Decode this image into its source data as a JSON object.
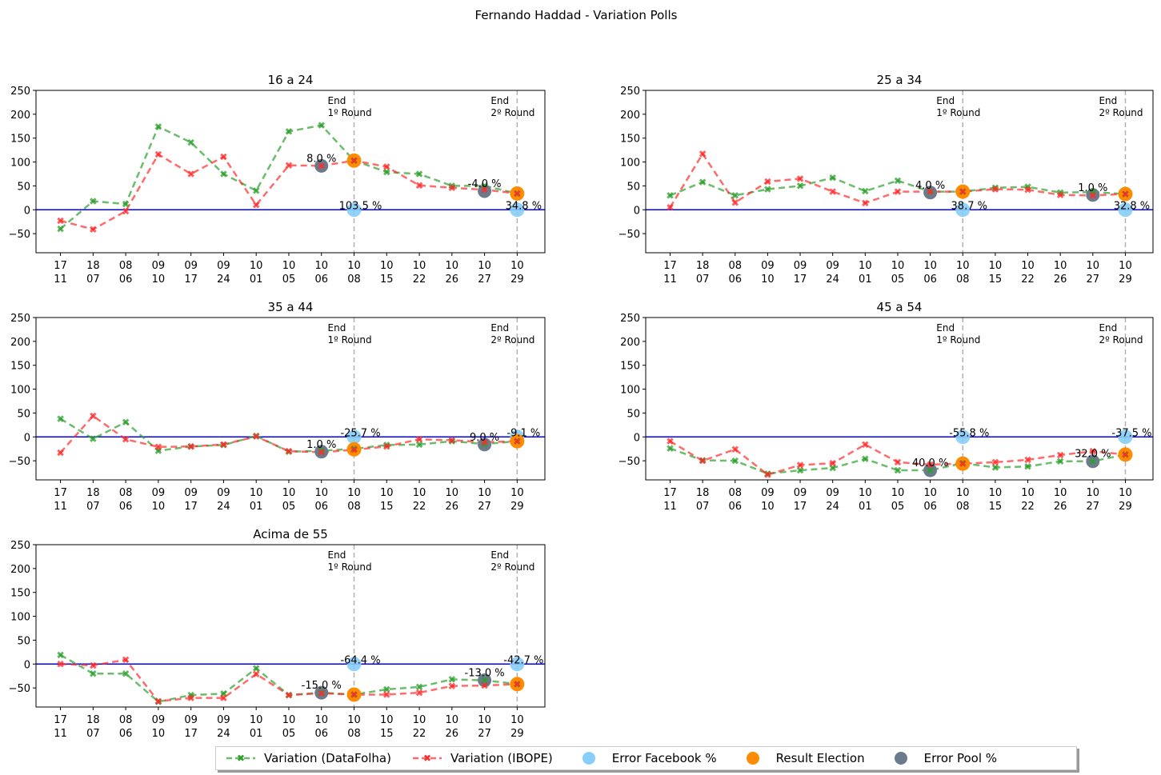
{
  "figure": {
    "suptitle": "Fernando Haddad - Variation Polls"
  },
  "colors": {
    "datafolha": "#2ca02c",
    "ibope": "#ff2b2b",
    "facebook": "#87cefa",
    "election": "#ff8c00",
    "pool": "#6b7b8c",
    "zero_line": "#0000ff",
    "vline": "#b0b0b0"
  },
  "legend": {
    "datafolha": "Variation (DataFolha)",
    "ibope": "Variation (IBOPE)",
    "facebook": "Error Facebook %",
    "election": "Result Election",
    "pool": "Error Pool %"
  },
  "markers": {
    "end1": "End\n1º Round",
    "end2": "End\n2º Round"
  },
  "chart_data": [
    {
      "type": "line",
      "title": "16 a 24",
      "categories": [
        "17\n11",
        "18\n07",
        "08\n06",
        "09\n10",
        "09\n17",
        "09\n24",
        "10\n01",
        "10\n05",
        "10\n06",
        "10\n08",
        "10\n15",
        "10\n22",
        "10\n26",
        "10\n27",
        "10\n29"
      ],
      "ylim": [
        -90,
        250
      ],
      "yticks": [
        -50,
        0,
        50,
        100,
        150,
        200,
        250
      ],
      "series": [
        {
          "name": "Variation (DataFolha)",
          "values": [
            -40,
            18,
            12,
            174,
            141,
            75,
            40,
            164,
            177,
            103,
            79,
            75,
            50,
            50,
            34
          ]
        },
        {
          "name": "Variation (IBOPE)",
          "values": [
            -23,
            -41,
            -3,
            116,
            75,
            111,
            10,
            93,
            92,
            103,
            90,
            51,
            46,
            42,
            34
          ]
        }
      ],
      "pool_points": [
        {
          "x": 8,
          "y": 92,
          "label": "8.0 %"
        },
        {
          "x": 13,
          "y": 39,
          "label": "-4.0 %"
        }
      ],
      "election_points": [
        {
          "x": 9,
          "y": 103
        },
        {
          "x": 14,
          "y": 34
        }
      ],
      "facebook_points": [
        {
          "x": 9,
          "y": 0,
          "label": "103.5 %"
        },
        {
          "x": 14,
          "y": 0,
          "label": "34.8 %"
        }
      ]
    },
    {
      "type": "line",
      "title": "25 a 34",
      "categories": [
        "17\n11",
        "18\n07",
        "08\n06",
        "09\n10",
        "09\n17",
        "09\n24",
        "10\n01",
        "10\n05",
        "10\n06",
        "10\n08",
        "10\n15",
        "10\n22",
        "10\n26",
        "10\n27",
        "10\n29"
      ],
      "ylim": [
        -90,
        250
      ],
      "yticks": [
        -50,
        0,
        50,
        100,
        150,
        200,
        250
      ],
      "series": [
        {
          "name": "Variation (DataFolha)",
          "values": [
            30,
            58,
            30,
            43,
            50,
            67,
            39,
            61,
            38,
            38,
            46,
            48,
            36,
            37,
            33
          ]
        },
        {
          "name": "Variation (IBOPE)",
          "values": [
            5,
            117,
            15,
            59,
            65,
            38,
            14,
            38,
            38,
            38,
            43,
            42,
            31,
            30,
            33
          ]
        }
      ],
      "pool_points": [
        {
          "x": 8,
          "y": 36,
          "label": "4.0 %"
        },
        {
          "x": 13,
          "y": 31,
          "label": "1.0 %"
        }
      ],
      "election_points": [
        {
          "x": 9,
          "y": 38
        },
        {
          "x": 14,
          "y": 33
        }
      ],
      "facebook_points": [
        {
          "x": 9,
          "y": 0,
          "label": "38.7 %"
        },
        {
          "x": 14,
          "y": 0,
          "label": "32.8 %"
        }
      ]
    },
    {
      "type": "line",
      "title": "35 a 44",
      "categories": [
        "17\n11",
        "18\n07",
        "08\n06",
        "09\n10",
        "09\n17",
        "09\n24",
        "10\n01",
        "10\n05",
        "10\n06",
        "10\n08",
        "10\n15",
        "10\n22",
        "10\n26",
        "10\n27",
        "10\n29"
      ],
      "ylim": [
        -90,
        250
      ],
      "yticks": [
        -50,
        0,
        50,
        100,
        150,
        200,
        250
      ],
      "series": [
        {
          "name": "Variation (DataFolha)",
          "values": [
            38,
            -4,
            31,
            -29,
            -20,
            -17,
            2,
            -31,
            -29,
            -25,
            -17,
            -16,
            -9,
            -15,
            -9
          ]
        },
        {
          "name": "Variation (IBOPE)",
          "values": [
            -33,
            44,
            -5,
            -21,
            -20,
            -16,
            1,
            -30,
            -32,
            -27,
            -20,
            -5,
            -7,
            -11,
            -9
          ]
        }
      ],
      "pool_points": [
        {
          "x": 8,
          "y": -31,
          "label": "1.0 %"
        },
        {
          "x": 13,
          "y": -16,
          "label": "9.0 %"
        }
      ],
      "election_points": [
        {
          "x": 9,
          "y": -26
        },
        {
          "x": 14,
          "y": -9
        }
      ],
      "facebook_points": [
        {
          "x": 9,
          "y": 0,
          "label": "-25.7 %"
        },
        {
          "x": 14,
          "y": 0,
          "label": "-9.1 %"
        }
      ]
    },
    {
      "type": "line",
      "title": "45 a 54",
      "categories": [
        "17\n11",
        "18\n07",
        "08\n06",
        "09\n10",
        "09\n17",
        "09\n24",
        "10\n01",
        "10\n05",
        "10\n06",
        "10\n08",
        "10\n15",
        "10\n22",
        "10\n26",
        "10\n27",
        "10\n29"
      ],
      "ylim": [
        -90,
        250
      ],
      "yticks": [
        -50,
        0,
        50,
        100,
        150,
        200,
        250
      ],
      "series": [
        {
          "name": "Variation (DataFolha)",
          "values": [
            -24,
            -49,
            -50,
            -77,
            -70,
            -65,
            -46,
            -70,
            -70,
            -55,
            -64,
            -62,
            -51,
            -51,
            -37
          ]
        },
        {
          "name": "Variation (IBOPE)",
          "values": [
            -9,
            -50,
            -26,
            -79,
            -59,
            -55,
            -16,
            -53,
            -58,
            -56,
            -53,
            -48,
            -38,
            -30,
            -37
          ]
        }
      ],
      "pool_points": [
        {
          "x": 8,
          "y": -70,
          "label": "40.0 %"
        },
        {
          "x": 13,
          "y": -51,
          "label": "32.0 %"
        }
      ],
      "election_points": [
        {
          "x": 9,
          "y": -56
        },
        {
          "x": 14,
          "y": -37
        }
      ],
      "facebook_points": [
        {
          "x": 9,
          "y": 0,
          "label": "-55.8 %"
        },
        {
          "x": 14,
          "y": 0,
          "label": "-37.5 %"
        }
      ]
    },
    {
      "type": "line",
      "title": "Acima de 55",
      "categories": [
        "17\n11",
        "18\n07",
        "08\n06",
        "09\n10",
        "09\n17",
        "09\n24",
        "10\n01",
        "10\n05",
        "10\n06",
        "10\n08",
        "10\n15",
        "10\n22",
        "10\n26",
        "10\n27",
        "10\n29"
      ],
      "ylim": [
        -90,
        250
      ],
      "yticks": [
        -50,
        0,
        50,
        100,
        150,
        200,
        250
      ],
      "series": [
        {
          "name": "Variation (DataFolha)",
          "values": [
            19,
            -20,
            -20,
            -79,
            -65,
            -62,
            -9,
            -65,
            -60,
            -64,
            -53,
            -48,
            -32,
            -34,
            -42
          ]
        },
        {
          "name": "Variation (IBOPE)",
          "values": [
            0,
            -3,
            9,
            -78,
            -71,
            -71,
            -21,
            -65,
            -61,
            -64,
            -64,
            -60,
            -46,
            -45,
            -42
          ]
        }
      ],
      "pool_points": [
        {
          "x": 8,
          "y": -60,
          "label": "-15.0 %"
        },
        {
          "x": 13,
          "y": -34,
          "label": "-13.0 %"
        }
      ],
      "election_points": [
        {
          "x": 9,
          "y": -64
        },
        {
          "x": 14,
          "y": -42
        }
      ],
      "facebook_points": [
        {
          "x": 9,
          "y": 0,
          "label": "-64.4 %"
        },
        {
          "x": 14,
          "y": 0,
          "label": "-42.7 %"
        }
      ]
    }
  ]
}
